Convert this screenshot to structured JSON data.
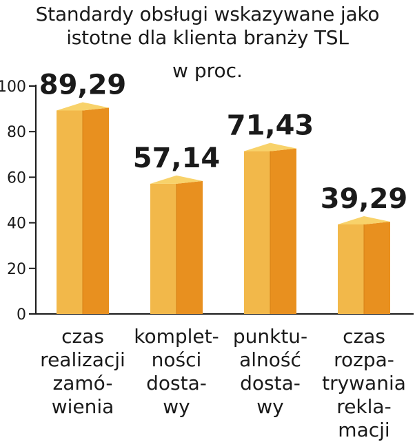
{
  "chart_data": {
    "type": "bar",
    "title_lines": [
      "Standardy obsługi wskazywane jako",
      "istotne dla klienta branży TSL"
    ],
    "subtitle": "w proc.",
    "ylim": [
      0,
      100
    ],
    "yticks": [
      0,
      20,
      40,
      60,
      80,
      100
    ],
    "ytick_labels": [
      "0",
      "20",
      "40",
      "60",
      "80",
      "100"
    ],
    "categories": [
      [
        "czas",
        "realizacji",
        "zamó-",
        "wienia"
      ],
      [
        "komplet-",
        "ności",
        "dosta-",
        "wy"
      ],
      [
        "punktu-",
        "alność",
        "dosta-",
        "wy"
      ],
      [
        "czas",
        "rozpa-",
        "trywania",
        "rekla-",
        "macji"
      ]
    ],
    "values": [
      89.29,
      57.14,
      71.43,
      39.29
    ],
    "value_labels": [
      "89,29",
      "57,14",
      "71,43",
      "39,29"
    ],
    "colors": {
      "front": "#f2b84a",
      "side": "#e8901f",
      "top": "#f8d26a",
      "axis": "#1a1a1a"
    }
  }
}
